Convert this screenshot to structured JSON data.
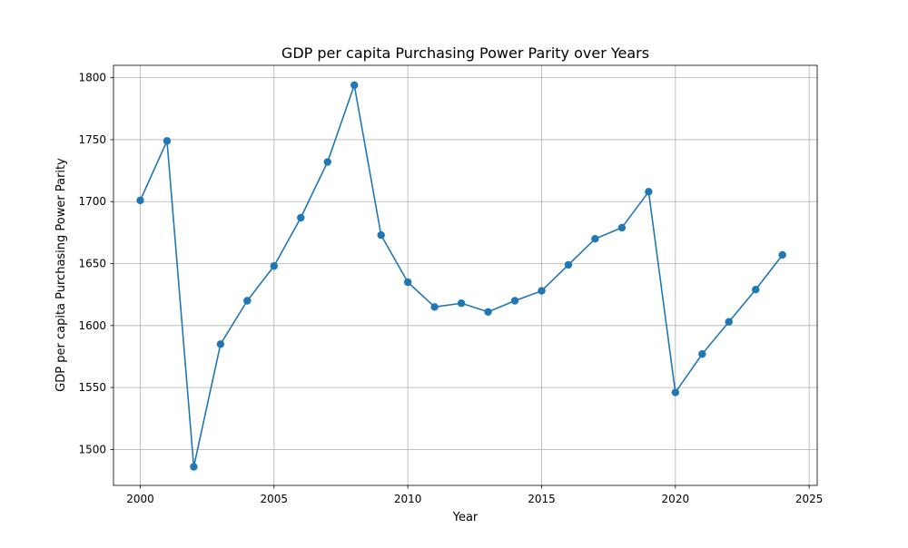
{
  "chart_data": {
    "type": "line",
    "title": "GDP per capita Purchasing Power Parity over Years",
    "xlabel": "Year",
    "ylabel": "GDP per capita Purchasing Power Parity",
    "xlim": [
      1999,
      2025.3
    ],
    "ylim": [
      1471,
      1810
    ],
    "x_ticks": [
      2000,
      2005,
      2010,
      2015,
      2020,
      2025
    ],
    "y_ticks": [
      1500,
      1550,
      1600,
      1650,
      1700,
      1750,
      1800
    ],
    "grid": true,
    "series": [
      {
        "color": "#1f77b4",
        "marker": "circle",
        "x": [
          2000,
          2001,
          2002,
          2003,
          2004,
          2005,
          2006,
          2007,
          2008,
          2009,
          2010,
          2011,
          2012,
          2013,
          2014,
          2015,
          2016,
          2017,
          2018,
          2019,
          2020,
          2021,
          2022,
          2023,
          2024
        ],
        "values": [
          1701,
          1749,
          1486,
          1585,
          1620,
          1648,
          1687,
          1732,
          1794,
          1673,
          1635,
          1615,
          1618,
          1611,
          1620,
          1628,
          1649,
          1670,
          1679,
          1708,
          1546,
          1577,
          1603,
          1629,
          1657
        ]
      }
    ]
  }
}
